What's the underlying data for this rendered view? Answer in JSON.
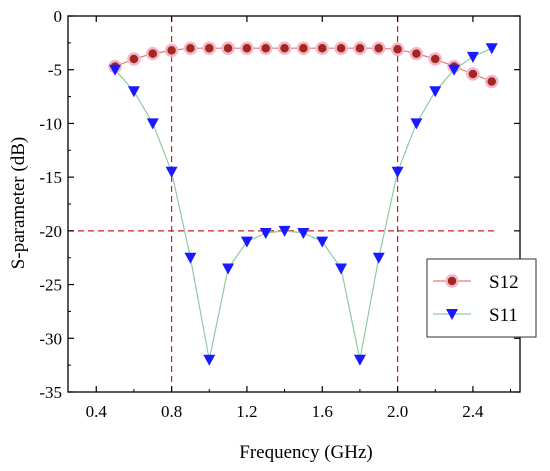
{
  "chart_data": {
    "type": "line",
    "xlabel": "Frequency (GHz)",
    "ylabel": "S-parameter (dB)",
    "xlim": [
      0.25,
      2.65
    ],
    "ylim": [
      -35,
      0
    ],
    "xticks": [
      "0.4",
      "0.8",
      "1.2",
      "1.6",
      "2.0",
      "2.4"
    ],
    "xtick_values": [
      0.4,
      0.8,
      1.2,
      1.6,
      2.0,
      2.4
    ],
    "yticks": [
      "0",
      "-5",
      "-10",
      "-15",
      "-20",
      "-25",
      "-30",
      "-35"
    ],
    "ytick_values": [
      0,
      -5,
      -10,
      -15,
      -20,
      -25,
      -30,
      -35
    ],
    "grid": false,
    "legend_position": "lower-right",
    "series": [
      {
        "name": "S12",
        "marker": "circle",
        "marker_color": "#a0281e",
        "line_color": "#e07a7a",
        "x": [
          0.5,
          0.6,
          0.7,
          0.8,
          0.9,
          1.0,
          1.1,
          1.2,
          1.3,
          1.4,
          1.5,
          1.6,
          1.7,
          1.8,
          1.9,
          2.0,
          2.1,
          2.2,
          2.3,
          2.4,
          2.5
        ],
        "values": [
          -4.7,
          -4.0,
          -3.5,
          -3.2,
          -3.0,
          -3.0,
          -3.0,
          -3.0,
          -3.0,
          -3.0,
          -3.0,
          -3.0,
          -3.0,
          -3.0,
          -3.0,
          -3.1,
          -3.5,
          -4.0,
          -4.7,
          -5.4,
          -6.1
        ]
      },
      {
        "name": "S11",
        "marker": "triangle-down",
        "marker_color": "#1a1aff",
        "line_color": "#8fc9a8",
        "x": [
          0.5,
          0.6,
          0.7,
          0.8,
          0.9,
          1.0,
          1.1,
          1.2,
          1.3,
          1.4,
          1.5,
          1.6,
          1.7,
          1.8,
          1.9,
          2.0,
          2.1,
          2.2,
          2.3,
          2.4,
          2.5
        ],
        "values": [
          -5.0,
          -7.0,
          -10.0,
          -14.5,
          -22.5,
          -32.0,
          -23.5,
          -21.0,
          -20.2,
          -20.0,
          -20.2,
          -21.0,
          -23.5,
          -32.0,
          -22.5,
          -14.5,
          -10.0,
          -7.0,
          -5.0,
          -3.8,
          -3.0
        ]
      }
    ],
    "reference_lines": {
      "color": "#cc2222",
      "vertical_x": [
        0.8,
        2.0
      ],
      "horizontal_y": [
        -20
      ]
    }
  }
}
